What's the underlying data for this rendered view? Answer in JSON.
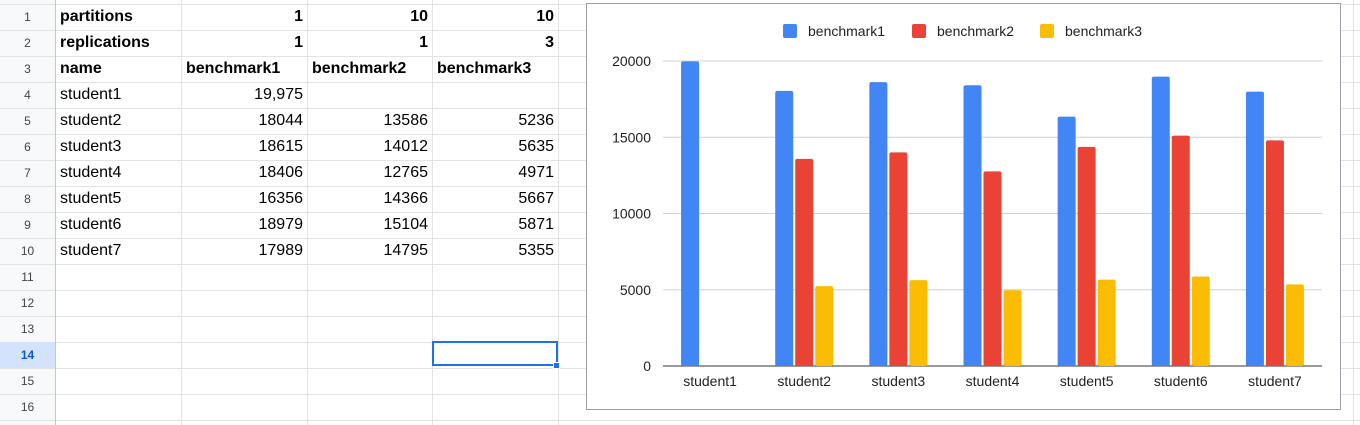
{
  "sheet": {
    "row_numbers": [
      "1",
      "2",
      "3",
      "4",
      "5",
      "6",
      "7",
      "8",
      "9",
      "10",
      "11",
      "12",
      "13",
      "14",
      "15",
      "16"
    ],
    "active_row": "14",
    "rows": [
      {
        "label": "partitions",
        "v1": "1",
        "v2": "10",
        "v3": "10"
      },
      {
        "label": "replications",
        "v1": "1",
        "v2": "1",
        "v3": "3"
      },
      {
        "label": "name",
        "v1": "benchmark1",
        "v2": "benchmark2",
        "v3": "benchmark3"
      },
      {
        "label": "student1",
        "v1": "19,975",
        "v2": "",
        "v3": ""
      },
      {
        "label": "student2",
        "v1": "18044",
        "v2": "13586",
        "v3": "5236"
      },
      {
        "label": "student3",
        "v1": "18615",
        "v2": "14012",
        "v3": "5635"
      },
      {
        "label": "student4",
        "v1": "18406",
        "v2": "12765",
        "v3": "4971"
      },
      {
        "label": "student5",
        "v1": "16356",
        "v2": "14366",
        "v3": "5667"
      },
      {
        "label": "student6",
        "v1": "18979",
        "v2": "15104",
        "v3": "5871"
      },
      {
        "label": "student7",
        "v1": "17989",
        "v2": "14795",
        "v3": "5355"
      }
    ]
  },
  "chart_data": {
    "type": "bar",
    "categories": [
      "student1",
      "student2",
      "student3",
      "student4",
      "student5",
      "student6",
      "student7"
    ],
    "series": [
      {
        "name": "benchmark1",
        "color": "#4285f4",
        "values": [
          19975,
          18044,
          18615,
          18406,
          16356,
          18979,
          17989
        ]
      },
      {
        "name": "benchmark2",
        "color": "#ea4335",
        "values": [
          null,
          13586,
          14012,
          12765,
          14366,
          15104,
          14795
        ]
      },
      {
        "name": "benchmark3",
        "color": "#fbbc04",
        "values": [
          null,
          5236,
          5635,
          4971,
          5667,
          5871,
          5355
        ]
      }
    ],
    "ylim": [
      0,
      20000
    ],
    "yticks": [
      0,
      5000,
      10000,
      15000,
      20000
    ],
    "ytick_labels": [
      "0",
      "5000",
      "10000",
      "15000",
      "20000"
    ],
    "grid": true,
    "legend_position": "top"
  }
}
